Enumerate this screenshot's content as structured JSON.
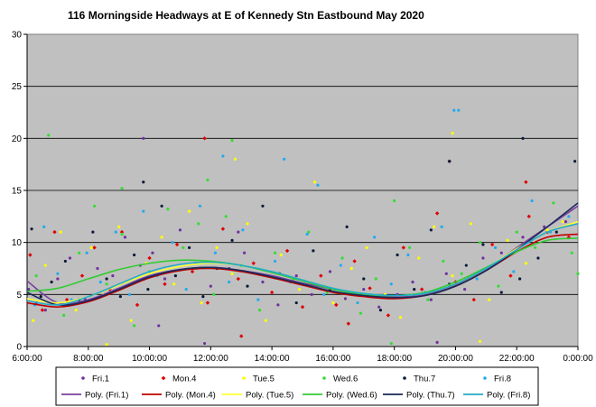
{
  "chart_data": {
    "type": "scatter",
    "title": "116 Morningside Headways at E of Kennedy Stn Eastbound May 2020",
    "xlabel": "",
    "ylabel": "",
    "x_unit": "time of day (hours)",
    "xlim": [
      6,
      24
    ],
    "ylim": [
      0,
      30
    ],
    "x_ticks": [
      6,
      8,
      10,
      12,
      14,
      16,
      18,
      20,
      22,
      24
    ],
    "x_tick_labels": [
      "6:00:00",
      "8:00:00",
      "10:00:00",
      "12:00:00",
      "14:00:00",
      "16:00:00",
      "18:00:00",
      "20:00:00",
      "22:00:00",
      "0:00:00"
    ],
    "y_ticks": [
      0,
      5,
      10,
      15,
      20,
      25,
      30
    ],
    "y_tick_labels": [
      "0",
      "5",
      "10",
      "15",
      "20",
      "25",
      "30"
    ],
    "grid": "horizontal major gridlines",
    "plot_background": "#c0c0c0",
    "legend_position": "bottom",
    "series": [
      {
        "name": "Fri.1",
        "color": "#7030a0",
        "marker": "dot",
        "x": [
          6.05,
          6.3,
          6.6,
          7.0,
          7.4,
          7.9,
          8.3,
          8.8,
          9.2,
          9.7,
          10.1,
          10.5,
          11.0,
          11.5,
          12.0,
          12.6,
          13.1,
          13.7,
          14.2,
          14.8,
          15.3,
          15.9,
          16.4,
          17.0,
          17.5,
          18.1,
          18.6,
          19.2,
          19.7,
          20.3,
          20.9,
          21.5,
          22.2,
          22.9,
          23.6,
          9.8,
          10.3,
          12.9,
          11.8,
          19.4
        ],
        "y": [
          5.5,
          4.2,
          3.5,
          6.5,
          8.5,
          4.5,
          7.5,
          6.8,
          10.5,
          7.8,
          9.0,
          6.5,
          11.2,
          8.0,
          5.8,
          7.5,
          9.0,
          6.2,
          4.0,
          6.8,
          5.0,
          7.2,
          4.6,
          5.5,
          3.8,
          5.0,
          6.2,
          4.5,
          7.0,
          5.5,
          8.5,
          9.0,
          10.5,
          11.5,
          12.0,
          20.0,
          2.0,
          11.0,
          0.3,
          0.4
        ]
      },
      {
        "name": "Mon.4",
        "color": "#e00000",
        "marker": "diamond",
        "x": [
          6.1,
          6.5,
          6.9,
          7.3,
          7.8,
          8.2,
          8.7,
          9.1,
          9.6,
          10.0,
          10.5,
          10.9,
          11.4,
          11.9,
          12.4,
          12.9,
          13.4,
          14.0,
          14.5,
          15.0,
          15.6,
          16.1,
          16.7,
          17.2,
          17.8,
          18.3,
          18.9,
          19.4,
          20.0,
          20.6,
          21.2,
          21.8,
          22.4,
          23.0,
          23.7,
          11.8,
          19.8,
          22.3,
          16.5,
          13.0
        ],
        "y": [
          8.8,
          3.5,
          11.0,
          4.5,
          6.8,
          9.5,
          5.5,
          11.0,
          4.0,
          8.5,
          6.0,
          9.8,
          7.2,
          4.2,
          11.3,
          6.5,
          8.0,
          5.2,
          9.2,
          3.8,
          6.8,
          4.0,
          8.2,
          5.6,
          3.0,
          9.5,
          5.5,
          12.8,
          6.2,
          4.5,
          9.8,
          6.8,
          12.5,
          11.0,
          10.5,
          20.0,
          17.8,
          15.8,
          2.2,
          1.0
        ]
      },
      {
        "name": "Tue.5",
        "color": "#ffff00",
        "marker": "dot",
        "x": [
          6.2,
          6.6,
          7.1,
          7.6,
          8.1,
          8.5,
          9.0,
          9.4,
          9.9,
          10.4,
          10.8,
          11.3,
          11.7,
          12.2,
          12.7,
          13.2,
          13.8,
          14.3,
          14.9,
          15.4,
          16.0,
          16.6,
          17.1,
          17.7,
          18.2,
          18.8,
          19.3,
          19.9,
          20.5,
          21.1,
          21.7,
          22.3,
          23.0,
          23.5,
          12.8,
          19.9,
          15.2,
          8.6,
          20.8
        ],
        "y": [
          2.5,
          7.8,
          11.0,
          3.5,
          9.5,
          5.0,
          11.5,
          2.5,
          8.0,
          10.5,
          6.0,
          13.0,
          4.2,
          9.5,
          7.0,
          11.8,
          2.5,
          8.8,
          5.5,
          15.8,
          4.2,
          7.5,
          9.5,
          5.0,
          2.8,
          8.5,
          11.5,
          6.8,
          11.8,
          4.5,
          10.2,
          8.0,
          11.2,
          12.0,
          18.0,
          20.5,
          6.2,
          0.2,
          0.5
        ]
      },
      {
        "name": "Wed.6",
        "color": "#33dd33",
        "marker": "dot",
        "x": [
          6.3,
          6.7,
          7.2,
          7.7,
          8.2,
          8.6,
          9.1,
          9.5,
          10.0,
          10.6,
          11.1,
          11.6,
          12.1,
          12.5,
          13.0,
          13.6,
          14.1,
          14.7,
          15.2,
          15.8,
          16.3,
          16.9,
          17.4,
          18.0,
          18.5,
          19.1,
          19.6,
          20.2,
          20.8,
          21.4,
          22.0,
          22.6,
          23.2,
          23.8,
          24.0,
          12.7,
          9.1,
          11.9,
          17.9
        ],
        "y": [
          6.8,
          20.3,
          3.0,
          9.0,
          13.5,
          6.0,
          10.8,
          2.0,
          7.2,
          13.2,
          9.5,
          11.8,
          5.0,
          12.5,
          7.8,
          3.5,
          9.0,
          6.5,
          11.0,
          5.2,
          8.5,
          3.2,
          6.5,
          14.0,
          9.5,
          4.5,
          8.2,
          7.0,
          10.0,
          5.8,
          11.0,
          9.5,
          13.8,
          9.0,
          7.0,
          19.8,
          15.2,
          16.0,
          0.3
        ]
      },
      {
        "name": "Thu.7",
        "color": "#0a1a3a",
        "marker": "dot",
        "x": [
          6.15,
          6.45,
          6.8,
          7.25,
          7.7,
          8.15,
          8.6,
          9.05,
          9.5,
          9.95,
          10.4,
          10.85,
          11.3,
          11.75,
          12.2,
          12.7,
          13.2,
          13.7,
          14.25,
          14.8,
          15.35,
          15.9,
          16.45,
          17.0,
          17.55,
          18.1,
          18.65,
          19.2,
          19.8,
          20.35,
          20.9,
          21.5,
          22.1,
          22.7,
          23.3,
          23.9,
          9.8,
          19.8,
          22.2
        ],
        "y": [
          11.3,
          4.8,
          6.2,
          8.2,
          4.5,
          11.0,
          6.5,
          4.8,
          8.8,
          5.5,
          13.5,
          6.8,
          9.5,
          4.8,
          7.5,
          10.2,
          5.8,
          13.5,
          7.0,
          4.2,
          9.2,
          5.5,
          11.5,
          6.5,
          3.5,
          8.8,
          5.5,
          11.2,
          6.0,
          7.8,
          9.8,
          5.2,
          6.5,
          8.5,
          11.0,
          17.8,
          15.8,
          17.8,
          20.0
        ]
      },
      {
        "name": "Fri.8",
        "color": "#22aaee",
        "marker": "dot",
        "x": [
          6.25,
          6.55,
          7.0,
          7.45,
          7.95,
          8.4,
          8.9,
          9.35,
          9.8,
          10.25,
          10.75,
          11.2,
          11.65,
          12.15,
          12.6,
          13.05,
          13.55,
          14.1,
          14.6,
          15.15,
          15.7,
          16.25,
          16.8,
          17.35,
          17.9,
          18.45,
          19.0,
          19.55,
          20.1,
          20.7,
          21.3,
          21.9,
          22.5,
          23.1,
          23.7,
          19.95,
          12.4,
          15.5,
          14.4
        ],
        "y": [
          4.0,
          11.5,
          7.0,
          4.5,
          9.0,
          6.2,
          11.0,
          5.0,
          13.0,
          6.8,
          10.0,
          5.5,
          13.5,
          9.0,
          6.2,
          11.2,
          4.5,
          8.2,
          6.2,
          10.8,
          5.0,
          7.8,
          4.2,
          10.5,
          6.0,
          8.8,
          5.2,
          11.5,
          22.7,
          6.5,
          9.5,
          7.2,
          14.0,
          11.0,
          12.5,
          22.7,
          18.3,
          15.5,
          18.0
        ]
      }
    ],
    "trendlines": [
      {
        "name": "Poly. (Fri.1)",
        "color": "#7b3fa0",
        "x": [
          6,
          7,
          8,
          9,
          10,
          11,
          12,
          13,
          14,
          15,
          16,
          17,
          18,
          19,
          20,
          21,
          22,
          23,
          24
        ],
        "y": [
          6.3,
          4.2,
          4.5,
          5.6,
          6.8,
          7.4,
          7.6,
          7.3,
          6.8,
          6.1,
          5.5,
          5.0,
          4.8,
          5.0,
          5.9,
          7.4,
          9.5,
          11.5,
          13.5
        ]
      },
      {
        "name": "Poly. (Mon.4)",
        "color": "#c00000",
        "x": [
          6,
          7,
          8,
          9,
          10,
          11,
          12,
          13,
          14,
          15,
          16,
          17,
          18,
          19,
          20,
          21,
          22,
          23,
          24
        ],
        "y": [
          4.2,
          3.8,
          4.3,
          5.4,
          6.6,
          7.3,
          7.5,
          7.2,
          6.6,
          5.9,
          5.2,
          4.8,
          4.6,
          4.9,
          5.8,
          7.3,
          9.1,
          10.5,
          10.8
        ]
      },
      {
        "name": "Poly. (Tue.5)",
        "color": "#ffff33",
        "x": [
          6,
          7,
          8,
          9,
          10,
          11,
          12,
          13,
          14,
          15,
          16,
          17,
          18,
          19,
          20,
          21,
          22,
          23,
          24
        ],
        "y": [
          4.6,
          4.2,
          4.8,
          5.9,
          7.0,
          7.7,
          8.0,
          7.8,
          7.2,
          6.4,
          5.6,
          5.1,
          4.9,
          5.1,
          6.0,
          7.5,
          9.4,
          11.0,
          12.0
        ]
      },
      {
        "name": "Poly. (Wed.6)",
        "color": "#33cc33",
        "x": [
          6,
          7,
          8,
          9,
          10,
          11,
          12,
          13,
          14,
          15,
          16,
          17,
          18,
          19,
          20,
          21,
          22,
          23,
          24
        ],
        "y": [
          5.3,
          5.6,
          6.5,
          7.4,
          8.0,
          8.3,
          8.2,
          7.8,
          7.1,
          6.3,
          5.5,
          5.0,
          4.9,
          5.2,
          6.2,
          7.6,
          9.1,
          10.2,
          10.4
        ]
      },
      {
        "name": "Poly. (Thu.7)",
        "color": "#1a2a5a",
        "x": [
          6,
          7,
          8,
          9,
          10,
          11,
          12,
          13,
          14,
          15,
          16,
          17,
          18,
          19,
          20,
          21,
          22,
          23,
          24
        ],
        "y": [
          5.2,
          4.0,
          4.4,
          5.5,
          6.7,
          7.4,
          7.6,
          7.3,
          6.7,
          6.0,
          5.3,
          4.9,
          4.7,
          4.9,
          5.8,
          7.3,
          9.3,
          11.5,
          13.8
        ]
      },
      {
        "name": "Poly. (Fri.8)",
        "color": "#22aacc",
        "x": [
          6,
          7,
          8,
          9,
          10,
          11,
          12,
          13,
          14,
          15,
          16,
          17,
          18,
          19,
          20,
          21,
          22,
          23,
          24
        ],
        "y": [
          4.4,
          4.0,
          4.8,
          6.0,
          7.2,
          7.9,
          8.1,
          7.8,
          7.2,
          6.4,
          5.6,
          5.1,
          4.9,
          5.1,
          6.0,
          7.5,
          9.3,
          11.0,
          11.8
        ]
      }
    ]
  }
}
